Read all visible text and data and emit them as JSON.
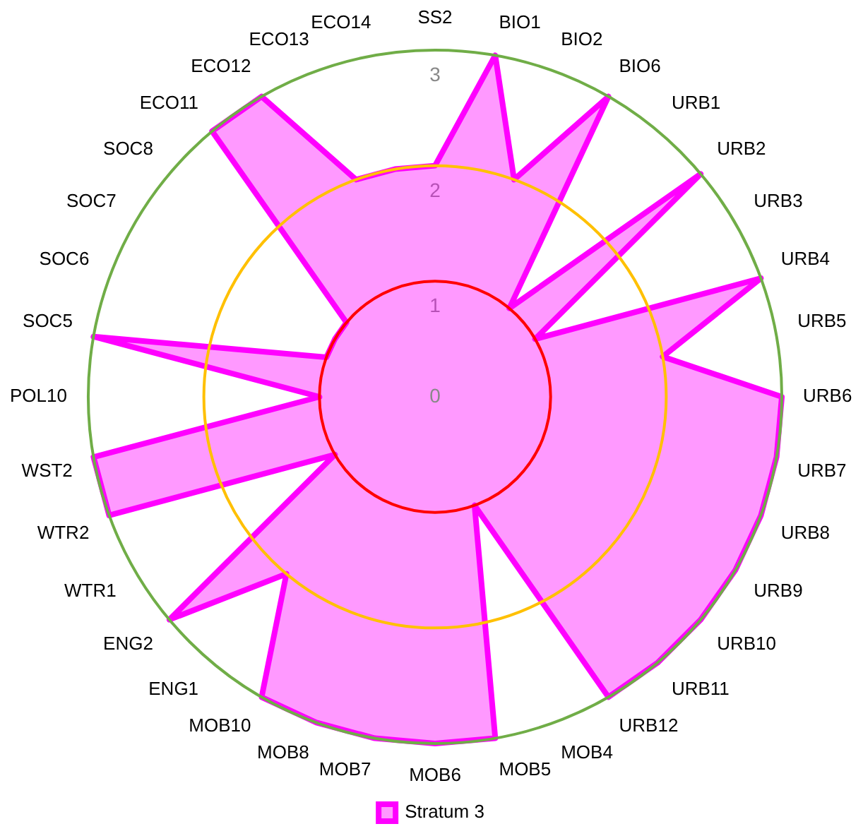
{
  "chart_data": {
    "type": "radar",
    "categories": [
      "SS2",
      "BIO1",
      "BIO2",
      "BIO6",
      "URB1",
      "URB2",
      "URB3",
      "URB4",
      "URB5",
      "URB6",
      "URB7",
      "URB8",
      "URB9",
      "URB10",
      "URB11",
      "URB12",
      "MOB4",
      "MOB5",
      "MOB6",
      "MOB7",
      "MOB8",
      "MOB10",
      "ENG1",
      "ENG2",
      "WTR1",
      "WTR2",
      "WST2",
      "POL10",
      "SOC5",
      "SOC6",
      "SOC7",
      "SOC8",
      "ECO11",
      "ECO12",
      "ECO13",
      "ECO14"
    ],
    "series": [
      {
        "name": "Stratum 3",
        "type": "area",
        "color": "#ff00ff",
        "values": [
          2,
          3,
          2,
          3,
          1,
          3,
          1,
          3,
          2,
          3,
          3,
          3,
          3,
          3,
          3,
          3,
          1,
          3,
          3,
          3,
          3,
          3,
          2,
          3,
          1,
          3,
          3,
          1,
          3,
          1,
          1,
          1,
          3,
          3,
          2,
          2
        ]
      }
    ],
    "ylim": [
      0,
      3
    ],
    "yticks": [
      0,
      1,
      2,
      3
    ],
    "grid": true,
    "legend": "bottom"
  }
}
